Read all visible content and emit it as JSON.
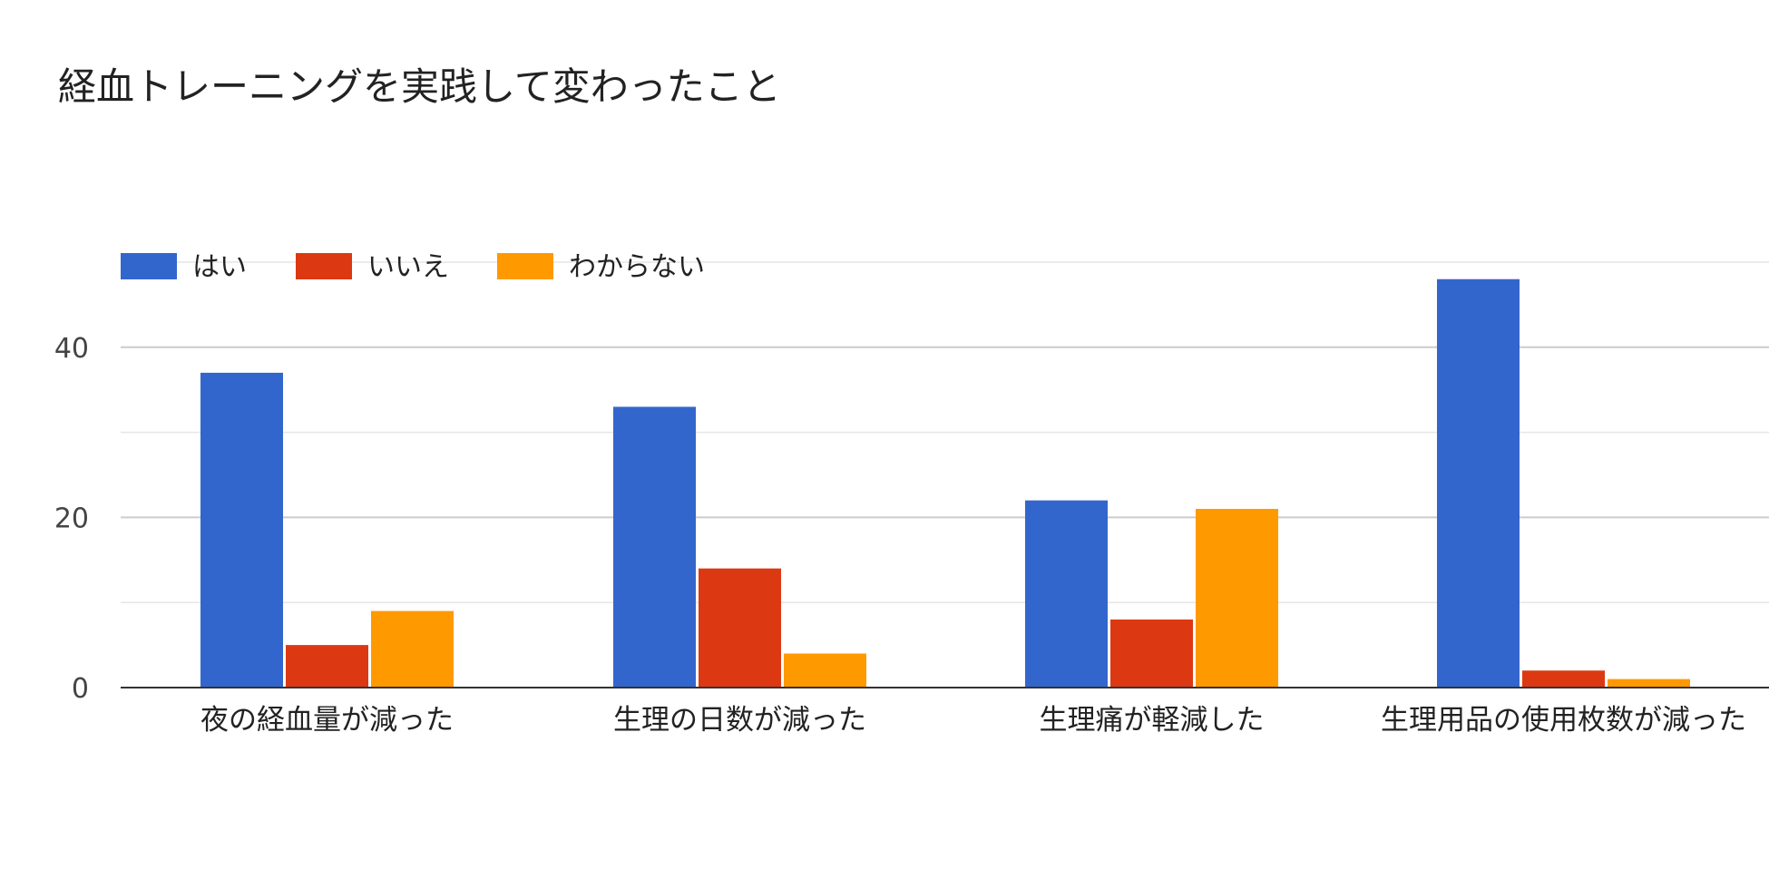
{
  "chart_data": {
    "type": "bar",
    "title": "経血トレーニングを実践して変わったこと",
    "xlabel": "",
    "ylabel": "",
    "categories": [
      "夜の経血量が減った",
      "生理の日数が減った",
      "生理痛が軽減した",
      "生理用品の使用枚数が減った"
    ],
    "series": [
      {
        "name": "はい",
        "color": "#3366CC",
        "values": [
          37,
          33,
          22,
          48
        ]
      },
      {
        "name": "いいえ",
        "color": "#DC3912",
        "values": [
          5,
          14,
          8,
          2
        ]
      },
      {
        "name": "わからない",
        "color": "#FF9900",
        "values": [
          9,
          4,
          21,
          1
        ]
      }
    ],
    "ylim": [
      0,
      50
    ],
    "yticks": [
      0,
      20,
      40
    ],
    "grid": true,
    "legend_position": "top-left"
  }
}
